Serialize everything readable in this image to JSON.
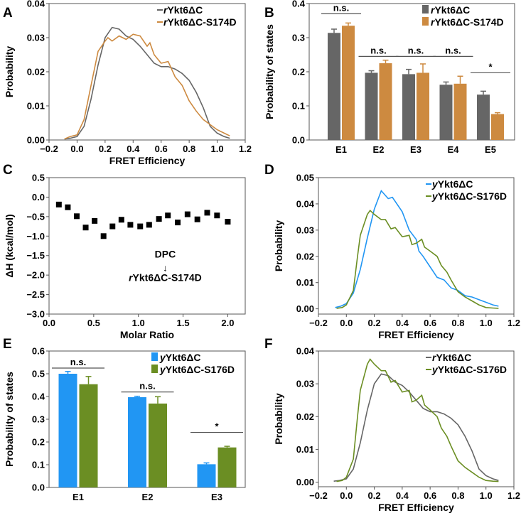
{
  "colors": {
    "gray": "#666666",
    "orange": "#cd8a40",
    "blue": "#2196f3",
    "green": "#6b8e23"
  },
  "chart_data": [
    {
      "panel": "A",
      "type": "line",
      "xlabel": "FRET Efficiency",
      "ylabel": "Probability",
      "xlim": [
        -0.2,
        1.2
      ],
      "ylim": [
        0,
        0.04
      ],
      "xticks": [
        "-0.2",
        "0.0",
        "0.2",
        "0.4",
        "0.6",
        "0.8",
        "1.0",
        "1.2"
      ],
      "yticks": [
        "0.00",
        "0.01",
        "0.02",
        "0.03",
        "0.04"
      ],
      "legend": "top-right",
      "series": [
        {
          "name": "rYkt6ΔC",
          "color": "gray",
          "x": [
            -0.09,
            -0.05,
            0,
            0.05,
            0.1,
            0.15,
            0.2,
            0.25,
            0.3,
            0.35,
            0.4,
            0.45,
            0.5,
            0.55,
            0.6,
            0.65,
            0.7,
            0.75,
            0.8,
            0.85,
            0.9,
            0.95,
            1.0,
            1.05,
            1.09
          ],
          "y": [
            0.0003,
            0.0005,
            0.001,
            0.004,
            0.012,
            0.022,
            0.03,
            0.033,
            0.0325,
            0.0305,
            0.0295,
            0.0275,
            0.025,
            0.0225,
            0.0215,
            0.0215,
            0.0208,
            0.0195,
            0.0175,
            0.014,
            0.0095,
            0.004,
            0.002,
            0.001,
            0.0005
          ]
        },
        {
          "name": "rYkt6ΔC-S174D",
          "color": "orange",
          "x": [
            -0.09,
            -0.05,
            0,
            0.05,
            0.1,
            0.15,
            0.2,
            0.22,
            0.25,
            0.3,
            0.35,
            0.4,
            0.45,
            0.5,
            0.52,
            0.55,
            0.6,
            0.65,
            0.7,
            0.75,
            0.8,
            0.85,
            0.9,
            0.95,
            1.0,
            1.05,
            1.09
          ],
          "y": [
            0.0003,
            0.001,
            0.0015,
            0.006,
            0.016,
            0.026,
            0.029,
            0.03,
            0.029,
            0.0305,
            0.0295,
            0.031,
            0.0305,
            0.0275,
            0.0285,
            0.025,
            0.0225,
            0.023,
            0.0185,
            0.016,
            0.0115,
            0.0085,
            0.006,
            0.0045,
            0.003,
            0.002,
            0.0012
          ]
        }
      ]
    },
    {
      "panel": "B",
      "type": "bar",
      "xlabel": "",
      "ylabel": "Probability of states",
      "ylim": [
        0,
        0.4
      ],
      "yticks": [
        "0.0",
        "0.1",
        "0.2",
        "0.3",
        "0.4"
      ],
      "categories": [
        "E1",
        "E2",
        "E3",
        "E4",
        "E5"
      ],
      "legend": "top-right",
      "series": [
        {
          "name": "rYkt6ΔC",
          "color": "gray",
          "values": [
            0.314,
            0.197,
            0.193,
            0.162,
            0.133
          ],
          "errors": [
            0.011,
            0.006,
            0.014,
            0.008,
            0.01
          ]
        },
        {
          "name": "rYkt6ΔC-S174D",
          "color": "orange",
          "values": [
            0.335,
            0.225,
            0.197,
            0.165,
            0.076
          ],
          "errors": [
            0.008,
            0.009,
            0.026,
            0.022,
            0.004
          ]
        }
      ],
      "significance": [
        {
          "category": "E1",
          "label": "n.s.",
          "level": 0.37
        },
        {
          "category": "E2",
          "label": "n.s.",
          "level": 0.245
        },
        {
          "category": "E3",
          "label": "n.s.",
          "level": 0.245
        },
        {
          "category": "E4",
          "label": "n.s.",
          "level": 0.245
        },
        {
          "category": "E5",
          "label": "*",
          "level": 0.197
        }
      ]
    },
    {
      "panel": "C",
      "type": "scatter",
      "xlabel": "Molar Ratio",
      "ylabel": "ΔH (kcal/mol)",
      "xlim": [
        0,
        2.1
      ],
      "ylim": [
        -3.0,
        0.5
      ],
      "xticks": [
        "0.0",
        "0.5",
        "1.0",
        "1.5",
        "2.0"
      ],
      "yticks": [
        "-3.0",
        "-2.5",
        "-2.0",
        "-1.5",
        "-1.0",
        "-0.5",
        "0.0",
        "0.5"
      ],
      "x": [
        0.11,
        0.21,
        0.31,
        0.41,
        0.51,
        0.61,
        0.71,
        0.81,
        0.91,
        1.02,
        1.12,
        1.23,
        1.33,
        1.44,
        1.55,
        1.66,
        1.77,
        1.88,
        2.0
      ],
      "y": [
        -0.19,
        -0.26,
        -0.49,
        -0.78,
        -0.61,
        -1.0,
        -0.75,
        -0.58,
        -0.71,
        -0.75,
        -0.71,
        -0.56,
        -0.47,
        -0.65,
        -0.44,
        -0.57,
        -0.4,
        -0.47,
        -0.63
      ],
      "annotation": {
        "top": "DPC",
        "arrow": "↓",
        "bottom": "rYkt6ΔC-S174D"
      }
    },
    {
      "panel": "D",
      "type": "line",
      "xlabel": "FRET Efficiency",
      "ylabel": "Probability",
      "xlim": [
        -0.2,
        1.2
      ],
      "ylim": [
        -0.002,
        0.05
      ],
      "xticks": [
        "-0.2",
        "0.0",
        "0.2",
        "0.4",
        "0.6",
        "0.8",
        "1.0",
        "1.2"
      ],
      "yticks": [
        "0.00",
        "0.01",
        "0.02",
        "0.03",
        "0.04",
        "0.05"
      ],
      "legend": "top-right",
      "series": [
        {
          "name": "yYkt6ΔC",
          "color": "blue",
          "x": [
            -0.08,
            -0.04,
            0,
            0.05,
            0.1,
            0.15,
            0.2,
            0.25,
            0.3,
            0.33,
            0.4,
            0.45,
            0.5,
            0.52,
            0.55,
            0.6,
            0.65,
            0.7,
            0.75,
            0.8,
            0.85,
            0.9,
            0.95,
            1.0,
            1.05,
            1.09
          ],
          "y": [
            0.0005,
            0.001,
            0.002,
            0.006,
            0.015,
            0.027,
            0.038,
            0.045,
            0.042,
            0.0425,
            0.037,
            0.03,
            0.0265,
            0.022,
            0.02,
            0.016,
            0.012,
            0.011,
            0.008,
            0.007,
            0.005,
            0.0045,
            0.0035,
            0.0025,
            0.0015,
            0.001
          ]
        },
        {
          "name": "yYkt6ΔC-S176D",
          "color": "green",
          "x": [
            -0.07,
            -0.03,
            0,
            0.05,
            0.08,
            0.1,
            0.15,
            0.17,
            0.2,
            0.25,
            0.28,
            0.32,
            0.35,
            0.4,
            0.45,
            0.47,
            0.5,
            0.54,
            0.56,
            0.6,
            0.65,
            0.68,
            0.72,
            0.75,
            0.8,
            0.85,
            0.9,
            0.95,
            1.0,
            1.05,
            1.09
          ],
          "y": [
            0.0002,
            0.0005,
            0.0015,
            0.007,
            0.02,
            0.028,
            0.036,
            0.0375,
            0.036,
            0.034,
            0.034,
            0.0305,
            0.031,
            0.0275,
            0.028,
            0.0245,
            0.025,
            0.0265,
            0.0235,
            0.022,
            0.02,
            0.0165,
            0.014,
            0.011,
            0.0065,
            0.0045,
            0.003,
            0.0015,
            0.0005,
            0.0003,
            0.0002
          ]
        }
      ]
    },
    {
      "panel": "E",
      "type": "bar",
      "xlabel": "",
      "ylabel": "Probability of states",
      "ylim": [
        0,
        0.6
      ],
      "yticks": [
        "0.0",
        "0.1",
        "0.2",
        "0.3",
        "0.4",
        "0.5",
        "0.6"
      ],
      "categories": [
        "E1",
        "E2",
        "E3"
      ],
      "legend": "top-right",
      "series": [
        {
          "name": "yYkt6ΔC",
          "color": "blue",
          "values": [
            0.5,
            0.397,
            0.102
          ],
          "errors": [
            0.01,
            0.004,
            0.006
          ]
        },
        {
          "name": "yYkt6ΔC-S176D",
          "color": "green",
          "values": [
            0.454,
            0.369,
            0.176
          ],
          "errors": [
            0.034,
            0.03,
            0.005
          ]
        }
      ],
      "significance": [
        {
          "category": "E1",
          "label": "n.s.",
          "level": 0.525
        },
        {
          "category": "E2",
          "label": "n.s.",
          "level": 0.42
        },
        {
          "category": "E3",
          "label": "*",
          "level": 0.242
        }
      ]
    },
    {
      "panel": "F",
      "type": "line",
      "xlabel": "FRET Efficiency",
      "ylabel": "Probability",
      "xlim": [
        -0.2,
        1.2
      ],
      "ylim": [
        -0.0014,
        0.04
      ],
      "xticks": [
        "-0.2",
        "0.0",
        "0.2",
        "0.4",
        "0.6",
        "0.8",
        "1.0",
        "1.2"
      ],
      "yticks": [
        "0.00",
        "0.01",
        "0.02",
        "0.03",
        "0.04"
      ],
      "legend": "top-right",
      "series": [
        {
          "name": "rYkt6ΔC",
          "color": "gray",
          "x": [
            -0.09,
            -0.05,
            0,
            0.05,
            0.1,
            0.15,
            0.2,
            0.25,
            0.3,
            0.35,
            0.4,
            0.45,
            0.5,
            0.55,
            0.6,
            0.65,
            0.7,
            0.75,
            0.8,
            0.85,
            0.9,
            0.95,
            1.0,
            1.05,
            1.09
          ],
          "y": [
            0.0003,
            0.0005,
            0.001,
            0.004,
            0.012,
            0.022,
            0.03,
            0.033,
            0.0325,
            0.0305,
            0.0295,
            0.0275,
            0.025,
            0.0225,
            0.0215,
            0.0215,
            0.0208,
            0.0195,
            0.0175,
            0.014,
            0.0095,
            0.004,
            0.002,
            0.001,
            0.0005
          ]
        },
        {
          "name": "yYkt6ΔC-S176D",
          "color": "green",
          "x": [
            -0.07,
            -0.03,
            0,
            0.05,
            0.08,
            0.1,
            0.15,
            0.17,
            0.2,
            0.25,
            0.28,
            0.32,
            0.35,
            0.4,
            0.45,
            0.47,
            0.5,
            0.54,
            0.56,
            0.6,
            0.65,
            0.68,
            0.72,
            0.75,
            0.8,
            0.85,
            0.9,
            0.95,
            1.0,
            1.05,
            1.09
          ],
          "y": [
            0.0002,
            0.0005,
            0.0015,
            0.007,
            0.02,
            0.028,
            0.036,
            0.0375,
            0.036,
            0.034,
            0.034,
            0.0305,
            0.031,
            0.0275,
            0.028,
            0.0245,
            0.025,
            0.0265,
            0.0235,
            0.022,
            0.02,
            0.0165,
            0.014,
            0.011,
            0.0065,
            0.0045,
            0.003,
            0.0015,
            0.0005,
            0.0003,
            0.0002
          ]
        }
      ]
    }
  ]
}
